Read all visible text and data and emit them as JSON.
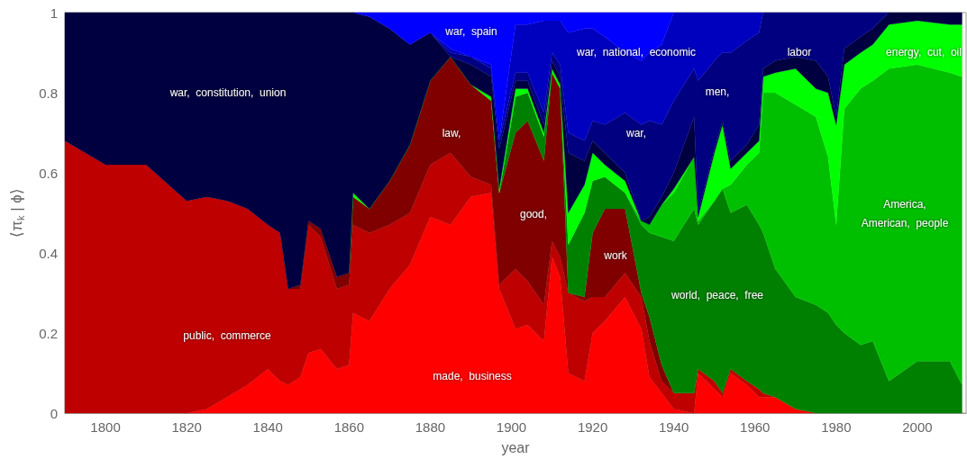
{
  "chart_data": {
    "type": "area",
    "stacked": true,
    "xlabel": "year",
    "ylabel": "⟨π$_{k}$ | ϕ⟩",
    "x": [
      1790,
      1800,
      1810,
      1820,
      1825,
      1830,
      1835,
      1840,
      1843,
      1845,
      1848,
      1850,
      1853,
      1857,
      1860,
      1861,
      1865,
      1870,
      1875,
      1880,
      1885,
      1890,
      1895,
      1897,
      1901,
      1904,
      1908,
      1910,
      1912,
      1914,
      1918,
      1920,
      1923,
      1928,
      1932,
      1934,
      1937,
      1940,
      1945,
      1946,
      1950,
      1952,
      1954,
      1958,
      1961,
      1962,
      1965,
      1970,
      1975,
      1978,
      1980,
      1982,
      1986,
      1989,
      1993,
      2000,
      2008,
      2011
    ],
    "series": [
      {
        "color": "#ff0000",
        "values": [
          null,
          null,
          null,
          0,
          0.01,
          0.04,
          0.07,
          0.11,
          0.08,
          0.07,
          0.09,
          0.15,
          0.16,
          0.11,
          0.12,
          0.25,
          0.23,
          0.31,
          0.37,
          0.49,
          0.47,
          0.54,
          0.55,
          0.31,
          0.21,
          0.22,
          0.18,
          0.39,
          0.34,
          0.1,
          0.08,
          0.2,
          0.23,
          0.29,
          0.21,
          0.09,
          0.05,
          0.01,
          0,
          0.1,
          0.06,
          0.04,
          0.1,
          0.07,
          0.04,
          0.04,
          0.04,
          0.01,
          0,
          null,
          null,
          null,
          null,
          null,
          null,
          null,
          null,
          null
        ]
      },
      {
        "color": "#bf0000",
        "values": [
          0.68,
          0.62,
          0.62,
          0.53,
          0.53,
          0.49,
          0.44,
          0.36,
          0.37,
          0.24,
          0.22,
          0.32,
          0.28,
          0.2,
          0.2,
          0.22,
          0.22,
          0.16,
          0.13,
          0.13,
          0.18,
          0.05,
          0.02,
          0.01,
          0.15,
          0.11,
          0.09,
          0.04,
          0.05,
          0.2,
          0.2,
          0.09,
          0.06,
          0.06,
          0.08,
          0.09,
          0.03,
          0.04,
          0.05,
          0.01,
          0.02,
          0.01,
          0.01,
          0.01,
          0.02,
          0.01,
          0,
          null,
          null,
          null,
          null,
          null,
          null,
          null,
          null,
          null,
          null,
          null
        ]
      },
      {
        "color": "#800000",
        "values": [
          null,
          null,
          null,
          null,
          null,
          null,
          null,
          null,
          null,
          0,
          0.01,
          0.01,
          0.02,
          0.03,
          0.03,
          0.07,
          0.06,
          0.11,
          0.17,
          0.21,
          0.24,
          0.23,
          0.21,
          0.23,
          0.34,
          0.4,
          0.36,
          0.42,
          0.42,
          0,
          0.01,
          0.16,
          0.22,
          0.16,
          0.01,
          0.06,
          0.04,
          0,
          null,
          null,
          null,
          null,
          null,
          null,
          null,
          null,
          null,
          null,
          null,
          null,
          null,
          null,
          null,
          null,
          null,
          null,
          null,
          null
        ]
      },
      {
        "color": "#008000",
        "values": [
          null,
          null,
          null,
          null,
          null,
          null,
          null,
          null,
          null,
          null,
          null,
          null,
          null,
          null,
          null,
          null,
          null,
          null,
          null,
          null,
          null,
          null,
          null,
          0,
          0.09,
          0.07,
          0.06,
          0,
          0,
          0.12,
          0.21,
          0.13,
          0.08,
          0.04,
          0.17,
          0.21,
          0.32,
          0.38,
          0.46,
          0.36,
          0.45,
          0.51,
          0.39,
          0.44,
          0.41,
          0.4,
          0.32,
          0.28,
          0.27,
          0.25,
          0.22,
          0.2,
          0.17,
          0.18,
          0.08,
          0.13,
          0.13,
          0.07
        ]
      },
      {
        "color": "#00bf00",
        "values": [
          null,
          null,
          null,
          null,
          null,
          null,
          null,
          null,
          null,
          null,
          null,
          null,
          null,
          null,
          null,
          null,
          null,
          null,
          null,
          null,
          null,
          null,
          null,
          null,
          null,
          null,
          null,
          null,
          null,
          null,
          null,
          null,
          null,
          0,
          0.01,
          0.02,
          0.08,
          0.12,
          0.13,
          0.01,
          0,
          0,
          0.07,
          0.1,
          0.18,
          0.35,
          0.44,
          0.48,
          0.47,
          0.39,
          0.25,
          0.56,
          0.64,
          0.65,
          0.78,
          0.74,
          0.72,
          0.77
        ]
      },
      {
        "color": "#00ff00",
        "values": [
          null,
          null,
          null,
          null,
          null,
          null,
          null,
          null,
          null,
          null,
          null,
          null,
          null,
          null,
          0,
          0.01,
          0,
          0,
          0,
          0,
          0,
          0,
          0.01,
          0.01,
          0.02,
          0.01,
          0.01,
          0.01,
          0.01,
          0.08,
          0.07,
          0.07,
          0.03,
          0.03,
          0,
          0,
          0,
          0.01,
          0,
          0.01,
          0.12,
          0.16,
          0.04,
          0.03,
          0.03,
          0.04,
          0.05,
          0.09,
          0.07,
          0.16,
          0.25,
          0.11,
          0.09,
          0.09,
          0.11,
          0.11,
          0.12,
          0.13
        ]
      },
      {
        "color": "#000040",
        "values": [
          0.32,
          0.38,
          0.38,
          0.47,
          0.46,
          0.47,
          0.49,
          0.53,
          0.55,
          0.69,
          0.68,
          0.52,
          0.54,
          0.66,
          0.65,
          0.45,
          0.48,
          0.38,
          0.25,
          0.12,
          0,
          0.05,
          0.05,
          0.1,
          0.02,
          0.02,
          0.02,
          0.02,
          0.02,
          0.15,
          0.06,
          0.03,
          0.03,
          0.02,
          0,
          0.02,
          0.02,
          0.04,
          0.1,
          0.01,
          0.01,
          0.01,
          0.02,
          0.02,
          0.04,
          0.02,
          0.03,
          0.03,
          0.07,
          0.04,
          0.02,
          0.04,
          0.04,
          0.04,
          0.03,
          0.02,
          0.03,
          0.03
        ]
      },
      {
        "color": "#000080",
        "values": [
          null,
          null,
          null,
          null,
          null,
          null,
          null,
          null,
          null,
          null,
          null,
          null,
          null,
          null,
          null,
          null,
          null,
          null,
          null,
          0,
          0.01,
          0.02,
          0.02,
          0.02,
          0.02,
          0.02,
          0.03,
          0.02,
          0.03,
          0.05,
          0.05,
          0.05,
          0.07,
          0.15,
          0.24,
          0.24,
          0.18,
          0.18,
          0.12,
          0.33,
          0.22,
          0.17,
          0.27,
          0.26,
          0.23,
          0.14,
          0.12,
          0.11,
          0.12,
          0.16,
          0.26,
          0.09,
          0.06,
          0.04,
          0,
          null,
          null,
          null
        ]
      },
      {
        "color": "#0000bf",
        "values": [
          null,
          null,
          null,
          null,
          null,
          null,
          null,
          null,
          null,
          null,
          null,
          null,
          null,
          null,
          null,
          null,
          null,
          null,
          null,
          0,
          0.01,
          0,
          0.01,
          0,
          0.12,
          0.12,
          0.23,
          0.08,
          0.11,
          0.25,
          0.28,
          0.23,
          0.22,
          0.15,
          0.16,
          0.17,
          0.2,
          0.22,
          0.14,
          0.17,
          0.12,
          0.1,
          0.1,
          0.07,
          0.05,
          0,
          null,
          null,
          null,
          null,
          null,
          null,
          null,
          null,
          null,
          null,
          null,
          null
        ]
      },
      {
        "color": "#0000ff",
        "values": [
          null,
          null,
          null,
          null,
          null,
          null,
          null,
          null,
          null,
          null,
          null,
          null,
          null,
          null,
          null,
          0,
          0.01,
          0.04,
          0.08,
          0.05,
          0.09,
          0.11,
          0.13,
          0.32,
          0.03,
          0.03,
          0.02,
          0.02,
          0.02,
          0.05,
          0.04,
          0.04,
          0.06,
          0.1,
          0.12,
          0.1,
          0.08,
          0,
          null,
          null,
          null,
          null,
          null,
          null,
          null,
          null,
          null,
          null,
          null,
          null,
          null,
          null,
          null,
          null,
          null,
          null,
          null,
          null
        ]
      }
    ],
    "xlim": [
      1790,
      2012
    ],
    "xticks": [
      1800,
      1820,
      1840,
      1860,
      1880,
      1900,
      1920,
      1940,
      1960,
      1980,
      2000
    ],
    "ylim": [
      0,
      1
    ],
    "yticks": [
      0,
      0.2,
      0.4,
      0.6,
      0.8,
      1
    ],
    "grid": false,
    "legend": false,
    "annotations": [
      "war,  constitution,  union",
      "public,  commerce",
      "made,  business",
      "law,",
      "war,  spain",
      "good,",
      "work",
      "war,  national,  economic",
      "war,",
      "men,",
      "labor",
      "energy,  cut,  oil",
      "world,  peace,  free",
      "America,\nAmerican,  people"
    ]
  }
}
